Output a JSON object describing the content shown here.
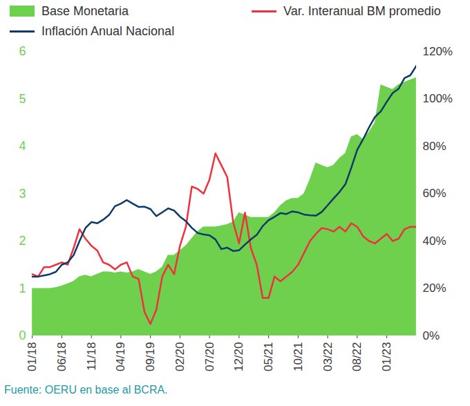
{
  "chart_data": {
    "type": "line",
    "source": "Fuente: OERU en base al BCRA.",
    "categories": [
      "01/18",
      null,
      null,
      null,
      null,
      "06/18",
      null,
      null,
      null,
      null,
      "11/18",
      null,
      null,
      null,
      null,
      "04/19",
      null,
      null,
      null,
      null,
      "09/19",
      null,
      null,
      null,
      null,
      "02/20",
      null,
      null,
      null,
      null,
      "07/20",
      null,
      null,
      null,
      null,
      "12/20",
      null,
      null,
      null,
      null,
      "05/21",
      null,
      null,
      null,
      null,
      "10/21",
      null,
      null,
      null,
      null,
      "03/22",
      null,
      null,
      null,
      null,
      "08/22",
      null,
      null,
      null,
      null,
      "01/23",
      null,
      null,
      null,
      null,
      null
    ],
    "ylim": [
      0,
      6
    ],
    "yticks": [
      0,
      1,
      2,
      3,
      4,
      5,
      6
    ],
    "y2lim": [
      0,
      120
    ],
    "y2ticks": [
      {
        "value": 0,
        "label": "0%"
      },
      {
        "value": 20,
        "label": "20%"
      },
      {
        "value": 40,
        "label": "40%"
      },
      {
        "value": 60,
        "label": "60%"
      },
      {
        "value": 80,
        "label": "80%"
      },
      {
        "value": 100,
        "label": "100%"
      },
      {
        "value": 120,
        "label": "120%"
      }
    ],
    "grid": false,
    "series": [
      {
        "name": "Base Monetaria",
        "type": "area",
        "color": "#6fd04e",
        "axis": "y",
        "values": [
          1.0,
          1.0,
          1.0,
          1.0,
          1.02,
          1.05,
          1.1,
          1.15,
          1.25,
          1.28,
          1.25,
          1.3,
          1.35,
          1.35,
          1.33,
          1.35,
          1.33,
          1.35,
          1.4,
          1.35,
          1.3,
          1.35,
          1.45,
          1.7,
          1.7,
          1.8,
          1.9,
          2.05,
          2.2,
          2.3,
          2.3,
          2.3,
          2.32,
          2.35,
          2.4,
          2.6,
          2.55,
          2.5,
          2.5,
          2.5,
          2.5,
          2.6,
          2.75,
          2.85,
          2.9,
          2.9,
          3.0,
          3.3,
          3.65,
          3.6,
          3.55,
          3.6,
          3.75,
          3.85,
          4.2,
          4.25,
          4.15,
          4.3,
          4.5,
          5.3,
          5.25,
          5.2,
          5.3,
          5.35,
          5.4,
          5.45
        ]
      },
      {
        "name": "Var. Interanual BM promedio",
        "type": "line",
        "color": "#f0313d",
        "axis": "y2",
        "values": [
          26,
          25,
          29,
          29,
          30,
          31,
          30,
          37,
          45,
          41,
          38,
          36,
          31,
          30,
          28,
          30,
          31,
          25,
          24,
          10,
          5,
          11,
          25,
          30,
          26,
          38,
          46,
          63,
          62,
          60,
          66,
          77,
          72,
          67,
          48,
          39,
          52,
          37,
          30,
          16,
          16,
          25,
          23,
          25,
          27,
          30,
          35,
          40,
          43,
          45.5,
          45,
          44,
          46,
          44,
          47.5,
          46,
          42,
          40,
          39,
          41,
          43,
          40,
          41,
          45,
          46,
          46
        ]
      },
      {
        "name": "Inflación Anual Nacional",
        "type": "line",
        "color": "#0d3a66",
        "axis": "y2",
        "values": [
          25,
          25,
          25.5,
          26,
          27,
          30,
          31,
          34,
          40,
          45.5,
          48,
          47.5,
          49,
          51,
          54.7,
          55.8,
          57.3,
          55.8,
          54.4,
          54.5,
          53.5,
          50.5,
          52.1,
          53.8,
          52.9,
          50.3,
          48.4,
          45.6,
          43.4,
          42.8,
          42.4,
          40.7,
          36.6,
          37.2,
          35.8,
          36.1,
          38.5,
          40.7,
          42.6,
          46.3,
          48.8,
          50.2,
          51.8,
          51.4,
          52.5,
          52.1,
          51.2,
          50.9,
          50.7,
          52.3,
          55.1,
          58,
          60.7,
          64,
          71,
          78.5,
          83,
          88,
          92.4,
          94.8,
          98.8,
          102.5,
          104.3,
          108.8,
          110,
          114
        ]
      }
    ]
  }
}
